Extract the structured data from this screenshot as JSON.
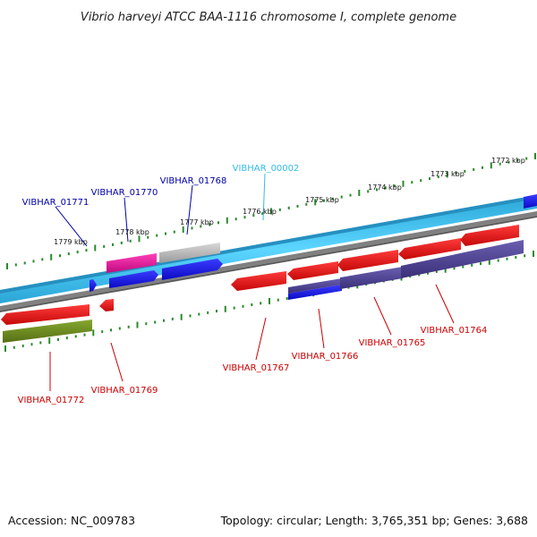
{
  "title": "Vibrio harveyi ATCC BAA-1116 chromosome I, complete genome",
  "footer": {
    "accession": "Accession: NC_009783",
    "summary": "Topology: circular; Length: 3,765,351 bp; Genes: 3,688"
  },
  "colors": {
    "chromosome": "#39c5ef",
    "backbone": "#808080",
    "tick": "#2a8a2a",
    "red_gene": "#ee1111",
    "red_label": "#cc0000",
    "blue_gene": "#1a1aee",
    "blue_label": "#0000aa",
    "navy_gene": "#4a3f8c",
    "magenta_gene": "#e0199a",
    "gray_gene": "#b5b5b5",
    "olive_gene": "#6b8a1e",
    "cyan_label": "#33bbe8"
  },
  "ticks": [
    {
      "id": "1779",
      "label": "1779 kbp"
    },
    {
      "id": "1778",
      "label": "1778 kbp"
    },
    {
      "id": "1777",
      "label": "1777 kbp"
    },
    {
      "id": "1776",
      "label": "1776 kbp"
    },
    {
      "id": "1775",
      "label": "1775 kbp"
    },
    {
      "id": "1774",
      "label": "1774 kbp"
    },
    {
      "id": "1773",
      "label": "1773 kbp"
    },
    {
      "id": "1772",
      "label": "1772 kbp"
    }
  ],
  "genes": [
    {
      "id": "00002",
      "label": "VIBHAR_00002",
      "color": "cyan_label"
    },
    {
      "id": "01771",
      "label": "VIBHAR_01771",
      "color": "blue_label"
    },
    {
      "id": "01770",
      "label": "VIBHAR_01770",
      "color": "blue_label"
    },
    {
      "id": "01768",
      "label": "VIBHAR_01768",
      "color": "blue_label"
    },
    {
      "id": "01772",
      "label": "VIBHAR_01772",
      "color": "red_label"
    },
    {
      "id": "01769",
      "label": "VIBHAR_01769",
      "color": "red_label"
    },
    {
      "id": "01767",
      "label": "VIBHAR_01767",
      "color": "red_label"
    },
    {
      "id": "01766",
      "label": "VIBHAR_01766",
      "color": "red_label"
    },
    {
      "id": "01765",
      "label": "VIBHAR_01765",
      "color": "red_label"
    },
    {
      "id": "01764",
      "label": "VIBHAR_01764",
      "color": "red_label"
    }
  ]
}
